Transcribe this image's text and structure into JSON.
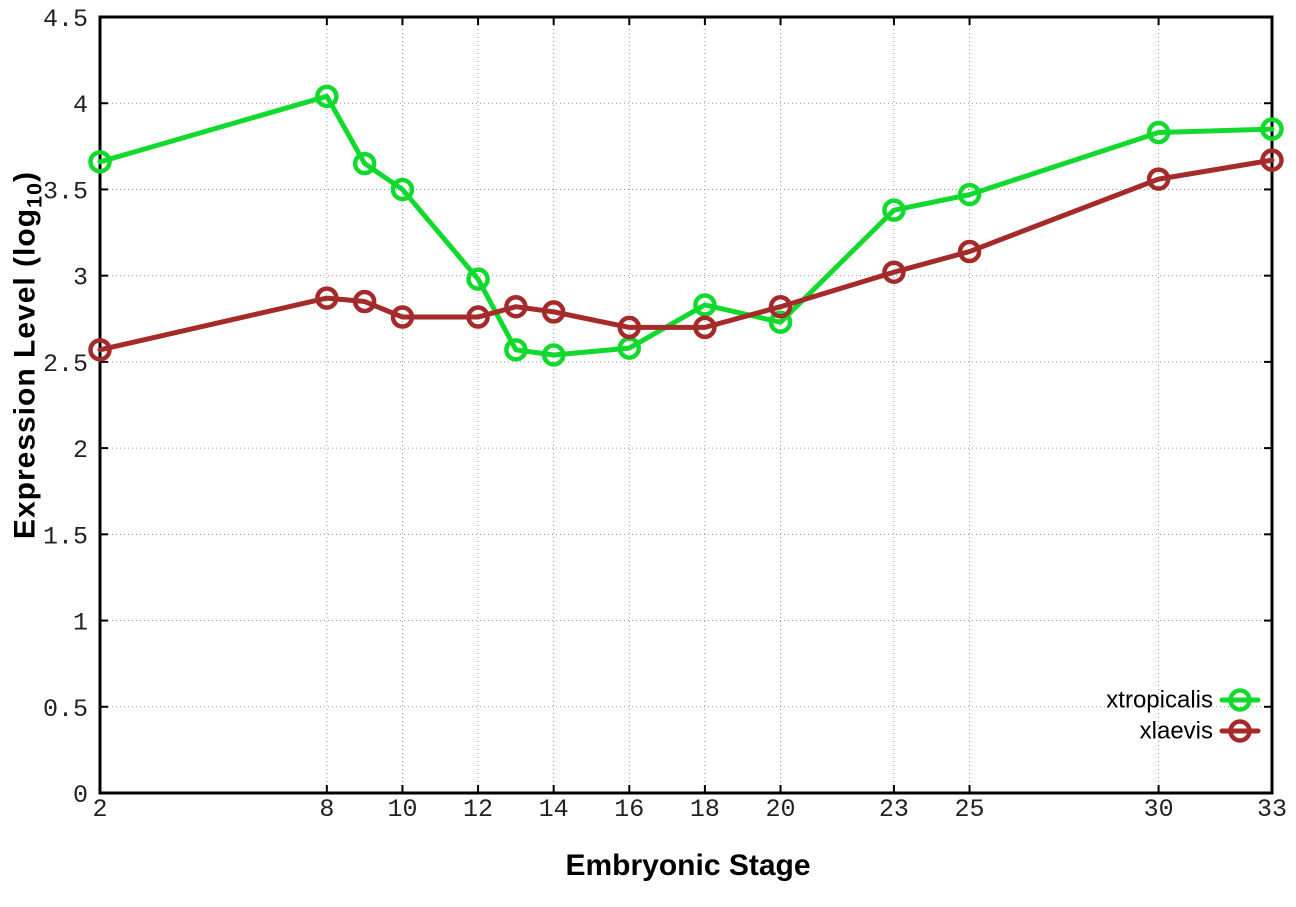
{
  "page": {
    "background": "#ffffff"
  },
  "chart_data": {
    "type": "line",
    "title": "",
    "xlabel": "Embryonic Stage",
    "ylabel": "Expression Level (log10)",
    "ylabel_parts": {
      "prefix": "Expression Level (log",
      "subscript": "10",
      "suffix": ")"
    },
    "xlim": [
      2,
      33
    ],
    "ylim": [
      0,
      4.5
    ],
    "x_ticks": [
      2,
      8,
      10,
      12,
      14,
      16,
      18,
      20,
      23,
      25,
      30,
      33
    ],
    "x_tick_labels": [
      "2",
      "8",
      "10",
      "12",
      "14",
      "16",
      "18",
      "20",
      "23",
      "25",
      "30",
      "33"
    ],
    "y_ticks": [
      0,
      0.5,
      1,
      1.5,
      2,
      2.5,
      3,
      3.5,
      4,
      4.5
    ],
    "y_tick_labels": [
      "0",
      "0.5",
      "1",
      "1.5",
      "2",
      "2.5",
      "3",
      "3.5",
      "4",
      "4.5"
    ],
    "grid": true,
    "grid_color": "#999999",
    "border_color": "#000000",
    "tick_label_color": "#222222",
    "legend_position": "bottom-right",
    "x": [
      2,
      8,
      9,
      10,
      12,
      13,
      14,
      16,
      18,
      20,
      23,
      25,
      30,
      33
    ],
    "series": [
      {
        "name": "xtropicalis",
        "color": "#12d92e",
        "marker": "open-circle",
        "values": [
          3.66,
          4.04,
          3.65,
          3.5,
          2.98,
          2.57,
          2.54,
          2.58,
          2.83,
          2.73,
          3.38,
          3.47,
          3.83,
          3.85
        ]
      },
      {
        "name": "xlaevis",
        "color": "#a52a2a",
        "marker": "open-circle",
        "values": [
          2.57,
          2.87,
          2.85,
          2.76,
          2.76,
          2.82,
          2.79,
          2.7,
          2.7,
          2.82,
          3.02,
          3.14,
          3.56,
          3.67
        ]
      }
    ]
  }
}
